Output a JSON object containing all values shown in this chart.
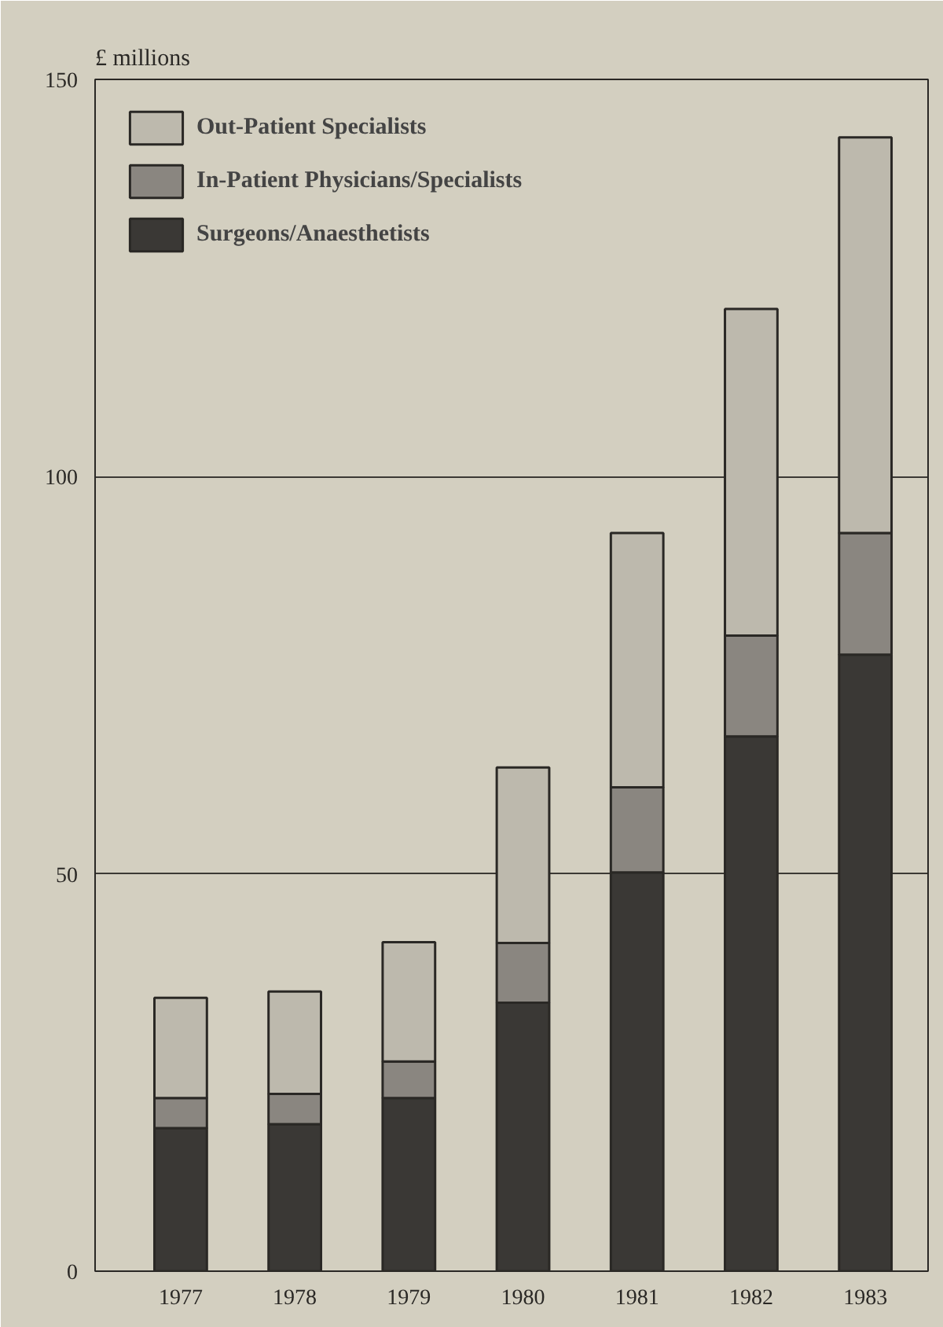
{
  "chart_data": {
    "type": "bar",
    "ylabel": "£ millions",
    "categories": [
      "1977",
      "1978",
      "1979",
      "1980",
      "1981",
      "1982",
      "1983"
    ],
    "stacked": true,
    "series": [
      {
        "name": "Surgeons/Anaesthetists",
        "color": "#3a3835",
        "values": [
          18.0,
          18.5,
          21.8,
          33.8,
          50.2,
          67.3,
          77.6
        ]
      },
      {
        "name": "In-Patient Physicians/Specialists",
        "color": "#8a8680",
        "values": [
          3.8,
          3.8,
          4.6,
          7.5,
          10.7,
          12.7,
          15.3
        ]
      },
      {
        "name": "Out-Patient Specialists",
        "color": "#bdb9ad",
        "values": [
          12.6,
          12.9,
          15.0,
          22.1,
          32.0,
          41.1,
          49.8
        ]
      }
    ],
    "ylim": [
      0,
      150
    ],
    "yticks": [
      0,
      50,
      100,
      150
    ],
    "grid": "y",
    "legend": "top left"
  }
}
